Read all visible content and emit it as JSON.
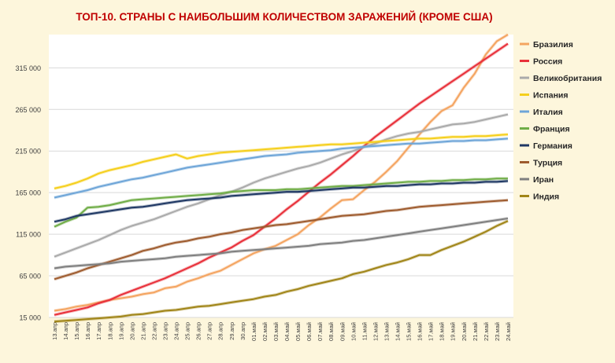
{
  "chart_data": {
    "type": "line",
    "title": "ТОП-10. СТРАНЫ С НАИБОЛЬШИМ КОЛИЧЕСТВОМ ЗАРАЖЕНИЙ (КРОМЕ США)",
    "xlabel": "",
    "ylabel": "",
    "ylim": [
      15000,
      355000
    ],
    "yticks": [
      15000,
      65000,
      115000,
      165000,
      215000,
      265000,
      315000
    ],
    "ytick_labels": [
      "15 000",
      "65 000",
      "115 000",
      "165 000",
      "215 000",
      "265 000",
      "315 000"
    ],
    "grid": true,
    "legend_position": "right",
    "colors": {
      "background": "#fdf6dc",
      "plot_background": "#ffffff",
      "title": "#c00000",
      "grid": "#d9d9d9"
    },
    "x": [
      "13.апр",
      "14.апр",
      "15.апр",
      "16.апр",
      "17.апр",
      "18.апр",
      "19.апр",
      "20.апр",
      "21.апр",
      "22.апр",
      "23.апр",
      "24.апр",
      "25.апр",
      "26.апр",
      "27.апр",
      "28.апр",
      "29.апр",
      "30.апр",
      "01.май",
      "02.май",
      "03.май",
      "04.май",
      "05.май",
      "06.май",
      "07.май",
      "08.май",
      "09.май",
      "10.май",
      "11.май",
      "12.май",
      "13.май",
      "14.май",
      "15.май",
      "16.май",
      "17.май",
      "18.май",
      "19.май",
      "20.май",
      "21.май",
      "22.май",
      "23.май",
      "24.май"
    ],
    "series": [
      {
        "name": "Бразилия",
        "color": "#f4a460",
        "values": [
          23000,
          25000,
          28000,
          30000,
          33000,
          36000,
          38000,
          40000,
          43000,
          45000,
          50000,
          52000,
          58000,
          62000,
          67000,
          71000,
          78000,
          85000,
          92000,
          97000,
          101000,
          108000,
          115000,
          126000,
          135000,
          146000,
          156000,
          157000,
          168000,
          178000,
          190000,
          203000,
          219000,
          235000,
          250000,
          263000,
          270000,
          291000,
          308000,
          331000,
          347000,
          355000
        ]
      },
      {
        "name": "Россия",
        "color": "#e8303a",
        "values": [
          18000,
          21000,
          24000,
          27000,
          32000,
          36000,
          42000,
          47000,
          52000,
          57000,
          62000,
          68000,
          74000,
          80000,
          87000,
          93000,
          99000,
          107000,
          114000,
          124000,
          134000,
          145000,
          155000,
          166000,
          177000,
          187000,
          198000,
          209000,
          221000,
          232000,
          242000,
          252000,
          262000,
          272000,
          281000,
          290000,
          299000,
          308000,
          317000,
          326000,
          335000,
          344000
        ]
      },
      {
        "name": "Великобритания",
        "color": "#aaaaaa",
        "values": [
          88000,
          93000,
          98000,
          103000,
          108000,
          114000,
          120000,
          125000,
          129000,
          133000,
          138000,
          143000,
          148000,
          152000,
          157000,
          162000,
          166000,
          171000,
          177000,
          182000,
          186000,
          190000,
          194000,
          197000,
          201000,
          206000,
          211000,
          215000,
          220000,
          224000,
          229000,
          233000,
          236000,
          238000,
          241000,
          244000,
          247000,
          248000,
          250000,
          253000,
          256000,
          259000
        ]
      },
      {
        "name": "Испания",
        "color": "#f5cf1c",
        "values": [
          170000,
          173000,
          177000,
          182000,
          188000,
          192000,
          195000,
          198000,
          202000,
          205000,
          208000,
          211000,
          206000,
          209000,
          211000,
          213000,
          214000,
          215000,
          216000,
          217000,
          218000,
          219000,
          220000,
          221000,
          222000,
          223000,
          223000,
          224000,
          225000,
          226000,
          227000,
          228000,
          229000,
          230000,
          230000,
          231000,
          232000,
          232000,
          233000,
          233000,
          234000,
          235000
        ]
      },
      {
        "name": "Италия",
        "color": "#6ea5d8",
        "values": [
          159000,
          162000,
          165000,
          168000,
          172000,
          175000,
          178000,
          181000,
          183000,
          186000,
          189000,
          192000,
          195000,
          197000,
          199000,
          201000,
          203000,
          205000,
          207000,
          209000,
          210000,
          211000,
          213000,
          214000,
          215000,
          216000,
          218000,
          219000,
          220000,
          221000,
          222000,
          223000,
          224000,
          224000,
          225000,
          226000,
          227000,
          227000,
          228000,
          228000,
          229000,
          230000
        ]
      },
      {
        "name": "Франция",
        "color": "#70ad47",
        "values": [
          124000,
          130000,
          135000,
          147000,
          148000,
          150000,
          153000,
          156000,
          157000,
          158000,
          159000,
          160000,
          161000,
          162000,
          163000,
          164000,
          166000,
          167000,
          168000,
          168000,
          168000,
          169000,
          169000,
          170000,
          171000,
          172000,
          173000,
          173000,
          174000,
          175000,
          176000,
          177000,
          178000,
          178000,
          179000,
          179000,
          180000,
          180000,
          181000,
          181000,
          182000,
          182000
        ]
      },
      {
        "name": "Германия",
        "color": "#1f3864",
        "values": [
          130000,
          133000,
          137000,
          139000,
          141000,
          143000,
          145000,
          147000,
          148000,
          150000,
          152000,
          154000,
          156000,
          157000,
          158000,
          159000,
          161000,
          162000,
          163000,
          164000,
          165000,
          166000,
          166000,
          167000,
          168000,
          169000,
          170000,
          171000,
          171000,
          172000,
          173000,
          173000,
          174000,
          175000,
          175000,
          176000,
          176000,
          177000,
          177000,
          178000,
          178000,
          179000
        ]
      },
      {
        "name": "Турция",
        "color": "#9e5b2e",
        "values": [
          61000,
          65000,
          69000,
          74000,
          78000,
          82000,
          86000,
          90000,
          95000,
          98000,
          102000,
          105000,
          107000,
          110000,
          112000,
          115000,
          117000,
          120000,
          122000,
          124000,
          126000,
          127000,
          129000,
          131000,
          133000,
          135000,
          137000,
          138000,
          139000,
          141000,
          143000,
          144000,
          146000,
          148000,
          149000,
          150000,
          151000,
          152000,
          153000,
          154000,
          155000,
          156000
        ]
      },
      {
        "name": "Иран",
        "color": "#7f7f7f",
        "values": [
          74000,
          76000,
          77000,
          78000,
          79000,
          80000,
          82000,
          83000,
          84000,
          85000,
          86000,
          88000,
          89000,
          90000,
          91000,
          92000,
          94000,
          95000,
          96000,
          97000,
          98000,
          99000,
          100000,
          101000,
          103000,
          104000,
          105000,
          107000,
          108000,
          110000,
          112000,
          114000,
          116000,
          118000,
          120000,
          122000,
          124000,
          126000,
          128000,
          130000,
          132000,
          134000
        ]
      },
      {
        "name": "Индия",
        "color": "#a08518",
        "values": [
          10000,
          11000,
          12000,
          13000,
          14000,
          15000,
          16000,
          18000,
          19000,
          21000,
          23000,
          24000,
          26000,
          28000,
          29000,
          31000,
          33000,
          35000,
          37000,
          40000,
          42000,
          46000,
          49000,
          53000,
          56000,
          59000,
          62000,
          67000,
          70000,
          74000,
          78000,
          81000,
          85000,
          90000,
          90000,
          96000,
          101000,
          106000,
          112000,
          118000,
          125000,
          131000
        ]
      }
    ]
  }
}
